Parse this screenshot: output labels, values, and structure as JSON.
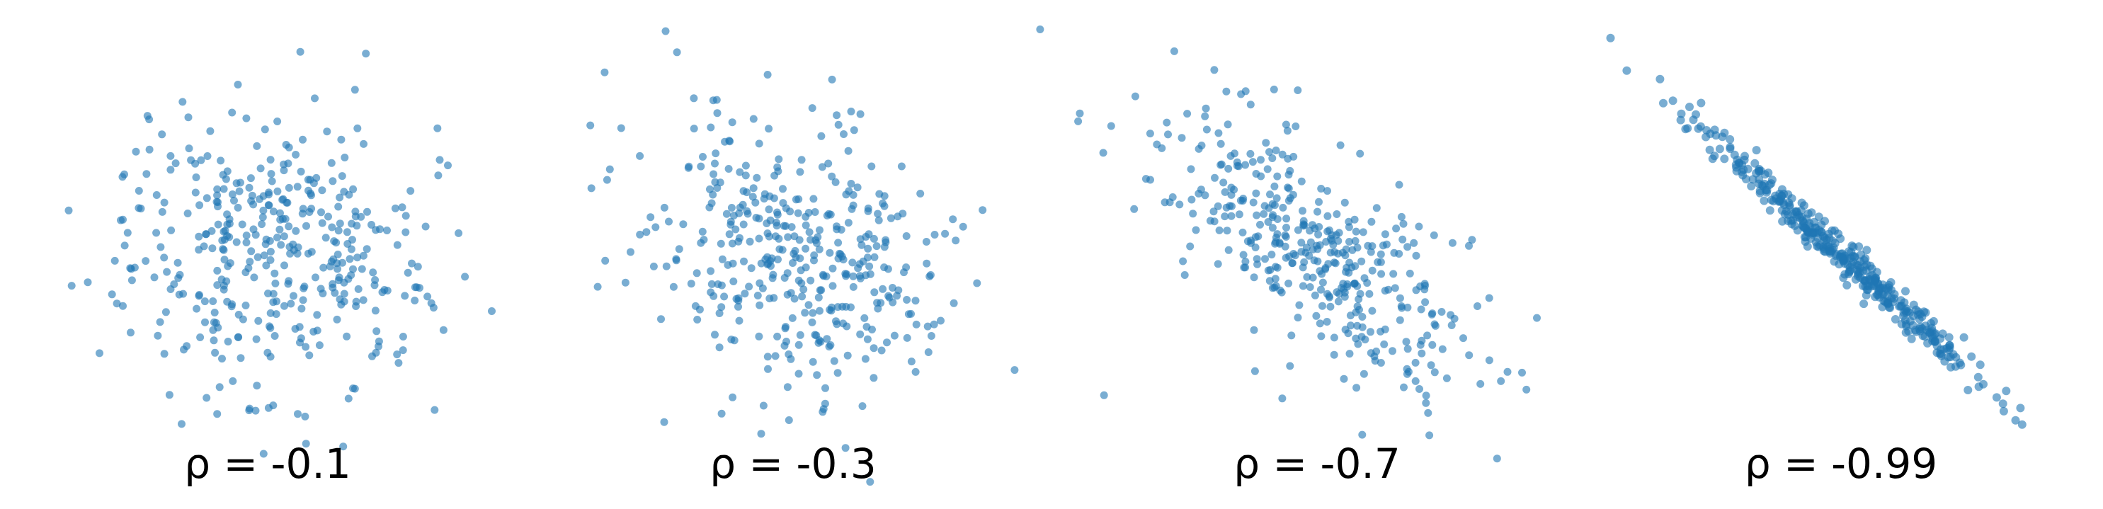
{
  "chart_data": [
    {
      "type": "scatter",
      "label": "ρ = -0.1",
      "correlation": -0.1,
      "n_points": 400,
      "color": "#1f77b4",
      "grid": false,
      "axes_visible": false
    },
    {
      "type": "scatter",
      "label": "ρ = -0.3",
      "correlation": -0.3,
      "n_points": 400,
      "color": "#1f77b4",
      "grid": false,
      "axes_visible": false
    },
    {
      "type": "scatter",
      "label": "ρ = -0.7",
      "correlation": -0.7,
      "n_points": 400,
      "color": "#1f77b4",
      "grid": false,
      "axes_visible": false
    },
    {
      "type": "scatter",
      "label": "ρ = -0.99",
      "correlation": -0.99,
      "n_points": 400,
      "color": "#1f77b4",
      "grid": false,
      "axes_visible": false
    }
  ]
}
